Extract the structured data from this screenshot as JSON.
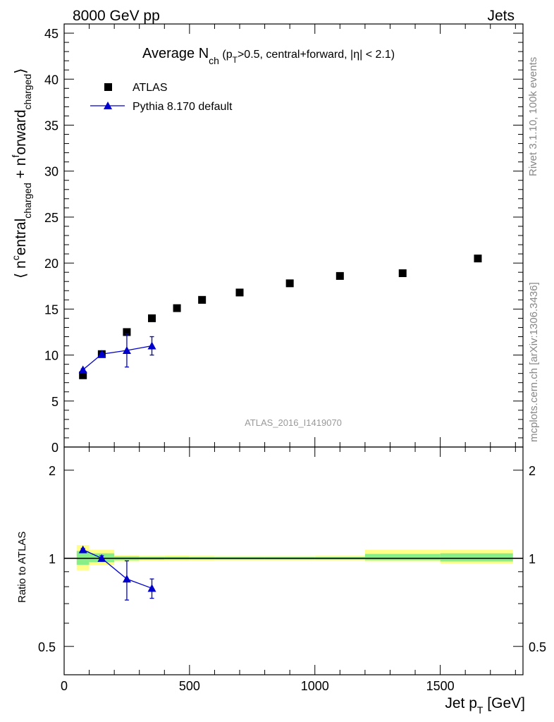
{
  "header": {
    "left": "8000 GeV pp",
    "right": "Jets"
  },
  "side_labels": {
    "rivet": "Rivet 3.1.10,  100k events",
    "mcplots": "mcplots.cern.ch [arXiv:1306.3436]"
  },
  "watermark": "ATLAS_2016_I1419070",
  "chart_data": [
    {
      "type": "scatter",
      "title": {
        "main": "Average N",
        "sub": "ch",
        "rest_open": " (p",
        "rest_sub": "T",
        "rest_tail": ">0.5, central+forward, |η| < 2.1)"
      },
      "ylabel": {
        "open": "⟨ n",
        "sup1": "c",
        "mid1": "entral",
        "sub1": "charged",
        "mid2": " + n",
        "sup2": "f",
        "mid3": "orward",
        "sub2": "charged",
        "close": "⟩"
      },
      "xlim": [
        0,
        1830
      ],
      "ylim": [
        0,
        46
      ],
      "x_ticks": [
        0,
        500,
        1000,
        1500
      ],
      "y_ticks": [
        0,
        5,
        10,
        15,
        20,
        25,
        30,
        35,
        40,
        45
      ],
      "legend_position": "top-left",
      "series": [
        {
          "name": "ATLAS",
          "marker": "square",
          "color": "#000000",
          "x": [
            75,
            150,
            250,
            350,
            450,
            550,
            700,
            900,
            1100,
            1350,
            1650
          ],
          "y": [
            7.8,
            10.1,
            12.5,
            14.0,
            15.1,
            16.0,
            16.8,
            17.8,
            18.6,
            18.9,
            20.5
          ]
        },
        {
          "name": "Pythia 8.170 default",
          "marker": "triangle",
          "color": "#0000cc",
          "x": [
            75,
            150,
            250,
            350
          ],
          "y": [
            8.4,
            10.1,
            10.5,
            11.0
          ],
          "yerr": [
            0.1,
            0.15,
            1.8,
            1.0
          ]
        }
      ]
    },
    {
      "type": "scatter",
      "ylabel": "Ratio to ATLAS",
      "xlabel": {
        "main": "Jet p",
        "sub": "T",
        "unit": " [GeV]"
      },
      "xlim": [
        0,
        1830
      ],
      "ylim": [
        0.4,
        2.4
      ],
      "log_y": true,
      "x_ticks": [
        0,
        500,
        1000,
        1500
      ],
      "y_ticks": [
        0.5,
        1,
        2
      ],
      "reference_line": 1,
      "uncertainty_bands": {
        "colors": {
          "inner": "#88ee88",
          "outer": "#ffff88"
        },
        "bins": [
          {
            "x": [
              50,
              100
            ],
            "inner": [
              0.95,
              1.06
            ],
            "outer": [
              0.91,
              1.11
            ]
          },
          {
            "x": [
              100,
              200
            ],
            "inner": [
              0.97,
              1.04
            ],
            "outer": [
              0.95,
              1.07
            ]
          },
          {
            "x": [
              200,
              300
            ],
            "inner": [
              0.985,
              1.015
            ],
            "outer": [
              0.975,
              1.025
            ]
          },
          {
            "x": [
              300,
              400
            ],
            "inner": [
              0.988,
              1.012
            ],
            "outer": [
              0.98,
              1.02
            ]
          },
          {
            "x": [
              400,
              500
            ],
            "inner": [
              0.99,
              1.012
            ],
            "outer": [
              0.982,
              1.022
            ]
          },
          {
            "x": [
              500,
              600
            ],
            "inner": [
              0.99,
              1.01
            ],
            "outer": [
              0.983,
              1.02
            ]
          },
          {
            "x": [
              600,
              800
            ],
            "inner": [
              0.99,
              1.01
            ],
            "outer": [
              0.984,
              1.018
            ]
          },
          {
            "x": [
              800,
              1000
            ],
            "inner": [
              0.99,
              1.01
            ],
            "outer": [
              0.984,
              1.018
            ]
          },
          {
            "x": [
              1000,
              1200
            ],
            "inner": [
              0.99,
              1.01
            ],
            "outer": [
              0.984,
              1.02
            ]
          },
          {
            "x": [
              1200,
              1500
            ],
            "inner": [
              0.985,
              1.035
            ],
            "outer": [
              0.975,
              1.07
            ]
          },
          {
            "x": [
              1500,
              1790
            ],
            "inner": [
              0.975,
              1.04
            ],
            "outer": [
              0.96,
              1.07
            ]
          }
        ]
      },
      "series": [
        {
          "name": "Pythia 8.170 default",
          "marker": "triangle",
          "color": "#0000cc",
          "x": [
            75,
            150,
            250,
            350
          ],
          "y": [
            1.07,
            1.0,
            0.85,
            0.79
          ],
          "yerr": [
            0.01,
            0.02,
            0.13,
            0.06
          ]
        }
      ]
    }
  ]
}
